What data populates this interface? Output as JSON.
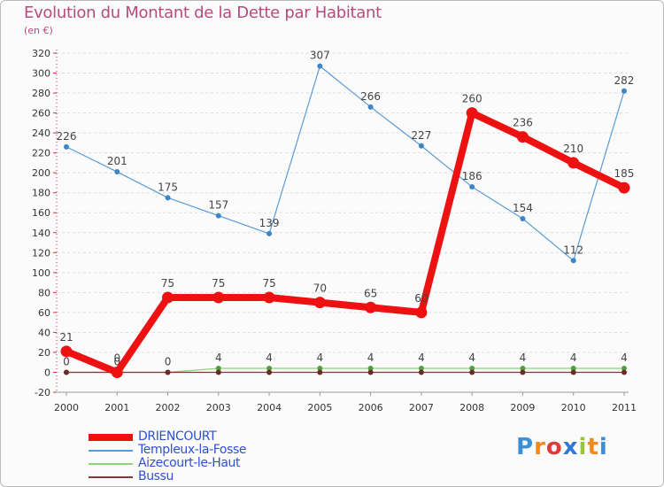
{
  "chart_data": {
    "type": "line",
    "title": "Evolution du Montant de la Dette par Habitant",
    "unit_label": "(en €)",
    "xlabel": "",
    "ylabel": "",
    "ylim": [
      -20,
      320
    ],
    "yticks": [
      "-20",
      "0",
      "20",
      "40",
      "60",
      "80",
      "100",
      "120",
      "140",
      "160",
      "180",
      "200",
      "220",
      "240",
      "260",
      "280",
      "300",
      "320"
    ],
    "categories": [
      "2000",
      "2001",
      "2002",
      "2003",
      "2004",
      "2005",
      "2006",
      "2007",
      "2008",
      "2009",
      "2010",
      "2011"
    ],
    "series": [
      {
        "name": "Templeux-la-Fosse",
        "color": "#5b9bd5",
        "values": [
          226,
          201,
          175,
          157,
          139,
          307,
          266,
          227,
          186,
          154,
          112,
          282
        ],
        "labels": [
          "226",
          "201",
          "175",
          "157",
          "139",
          "307",
          "266",
          "227",
          "186",
          "154",
          "112",
          "282"
        ]
      },
      {
        "name": "Aizecourt-le-Haut",
        "color": "#8fd37a",
        "values": [
          0,
          0,
          0,
          4,
          4,
          4,
          4,
          4,
          4,
          4,
          4,
          4
        ],
        "labels": [
          "0",
          "0",
          "0",
          "4",
          "4",
          "4",
          "4",
          "4",
          "4",
          "4",
          "4",
          "4"
        ]
      },
      {
        "name": "Bussu",
        "color": "#7a3b3b",
        "values": [
          0,
          0,
          0,
          0,
          0,
          0,
          0,
          0,
          0,
          0,
          0,
          0
        ],
        "labels": []
      },
      {
        "name": "DRIENCOURT",
        "color": "#ee1111",
        "values": [
          21,
          0,
          75,
          75,
          75,
          70,
          65,
          60,
          260,
          236,
          210,
          185
        ],
        "labels": [
          "21",
          "0",
          "75",
          "75",
          "75",
          "70",
          "65",
          "60",
          "260",
          "236",
          "210",
          "185"
        ]
      }
    ],
    "legend": [
      {
        "name": "DRIENCOURT",
        "color": "#ee1111"
      },
      {
        "name": "Templeux-la-Fosse",
        "color": "#5b9bd5"
      },
      {
        "name": "Aizecourt-le-Haut",
        "color": "#8fd37a"
      },
      {
        "name": "Bussu",
        "color": "#7a3b3b"
      }
    ]
  },
  "logo": {
    "letters": [
      "P",
      "r",
      "o",
      "x",
      "i",
      "t",
      "i"
    ],
    "colors": [
      "#3a8fd6",
      "#f08a1c",
      "#e03a3a",
      "#2e7bd6",
      "#9bc43c",
      "#f08a1c",
      "#3a8fd6"
    ]
  }
}
